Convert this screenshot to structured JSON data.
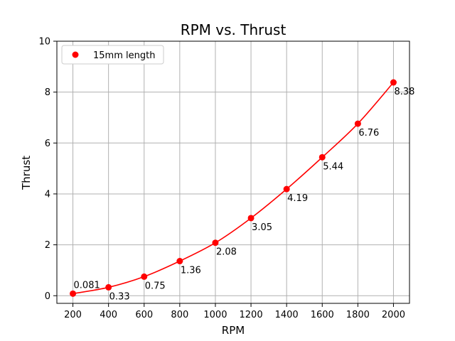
{
  "chart_data": {
    "type": "line",
    "title": "RPM vs. Thrust",
    "xlabel": "RPM",
    "ylabel": "Thrust",
    "x": [
      200,
      400,
      600,
      800,
      1000,
      1200,
      1400,
      1600,
      1800,
      2000
    ],
    "series": [
      {
        "name": "15mm length",
        "values": [
          0.081,
          0.33,
          0.75,
          1.36,
          2.08,
          3.05,
          4.19,
          5.44,
          6.76,
          8.38
        ],
        "labels": [
          "0.081",
          "0.33",
          "0.75",
          "1.36",
          "2.08",
          "3.05",
          "4.19",
          "5.44",
          "6.76",
          "8.38"
        ],
        "color": "#ff0000",
        "marker": "circle",
        "curve": "smooth"
      }
    ],
    "xlim": [
      110,
      2090
    ],
    "ylim": [
      -0.3,
      10
    ],
    "xticks": [
      200,
      400,
      600,
      800,
      1000,
      1200,
      1400,
      1600,
      1800,
      2000
    ],
    "yticks": [
      0,
      2,
      4,
      6,
      8,
      10
    ],
    "grid": true,
    "legend": "top-left"
  }
}
